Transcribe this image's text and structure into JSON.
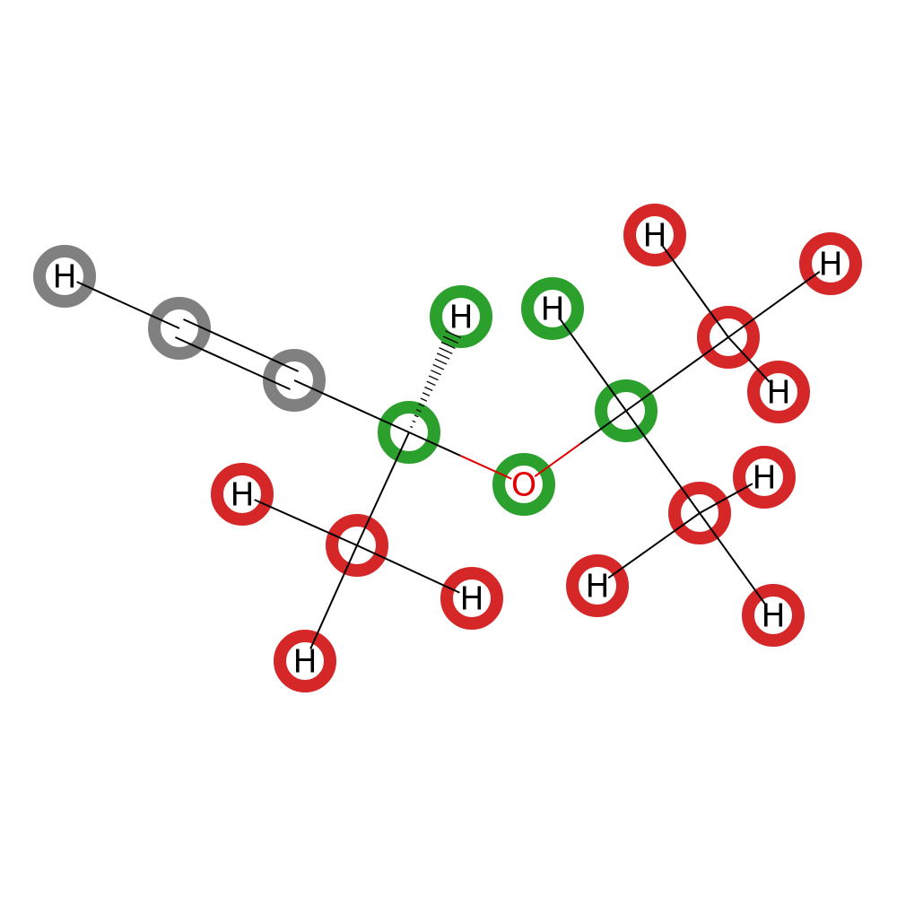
{
  "title": "",
  "colors": {
    "green": "#2ca02c",
    "red": "#d62728",
    "gray": "#808080",
    "bond": "#000000",
    "oxygen_bond": "#e00000",
    "oxygen_text": "#e00000",
    "label_text": "#000000"
  },
  "atoms": {
    "h_terminal": {
      "label": "H",
      "highlight": "gray"
    },
    "c_alkyne_1": {
      "label": "",
      "highlight": "gray"
    },
    "c_alkyne_2": {
      "label": "",
      "highlight": "gray"
    },
    "c_stereo": {
      "label": "",
      "highlight": "green"
    },
    "h_stereo": {
      "label": "H",
      "highlight": "green"
    },
    "o_ether": {
      "label": "O",
      "highlight": "green"
    },
    "c_isopropyl": {
      "label": "",
      "highlight": "green"
    },
    "h_isopropyl": {
      "label": "H",
      "highlight": "green"
    },
    "c_methyl_a": {
      "label": "",
      "highlight": "red"
    },
    "h_methyl_a_1": {
      "label": "H",
      "highlight": "red"
    },
    "h_methyl_a_2": {
      "label": "H",
      "highlight": "red"
    },
    "h_methyl_a_3": {
      "label": "H",
      "highlight": "red"
    },
    "c_methyl_b": {
      "label": "",
      "highlight": "red"
    },
    "h_methyl_b_1": {
      "label": "H",
      "highlight": "red"
    },
    "h_methyl_b_2": {
      "label": "H",
      "highlight": "red"
    },
    "h_methyl_b_3": {
      "label": "H",
      "highlight": "red"
    },
    "c_methyl_c": {
      "label": "",
      "highlight": "red"
    },
    "h_methyl_c_1": {
      "label": "H",
      "highlight": "red"
    },
    "h_methyl_c_2": {
      "label": "H",
      "highlight": "red"
    },
    "h_methyl_c_3": {
      "label": "H",
      "highlight": "red"
    }
  },
  "bonds": [
    {
      "from": "h_terminal",
      "to": "c_alkyne_1",
      "order": 1
    },
    {
      "from": "c_alkyne_1",
      "to": "c_alkyne_2",
      "order": 3
    },
    {
      "from": "c_alkyne_2",
      "to": "c_stereo",
      "order": 1
    },
    {
      "from": "c_stereo",
      "to": "h_stereo",
      "order": 1,
      "stereo": "hash"
    },
    {
      "from": "c_stereo",
      "to": "o_ether",
      "order": 1
    },
    {
      "from": "c_stereo",
      "to": "c_methyl_a",
      "order": 1
    },
    {
      "from": "c_methyl_a",
      "to": "h_methyl_a_1",
      "order": 1
    },
    {
      "from": "c_methyl_a",
      "to": "h_methyl_a_2",
      "order": 1
    },
    {
      "from": "c_methyl_a",
      "to": "h_methyl_a_3",
      "order": 1
    },
    {
      "from": "o_ether",
      "to": "c_isopropyl",
      "order": 1
    },
    {
      "from": "c_isopropyl",
      "to": "h_isopropyl",
      "order": 1
    },
    {
      "from": "c_isopropyl",
      "to": "c_methyl_b",
      "order": 1
    },
    {
      "from": "c_methyl_b",
      "to": "h_methyl_b_1",
      "order": 1
    },
    {
      "from": "c_methyl_b",
      "to": "h_methyl_b_2",
      "order": 1
    },
    {
      "from": "c_methyl_b",
      "to": "h_methyl_b_3",
      "order": 1
    },
    {
      "from": "c_isopropyl",
      "to": "c_methyl_c",
      "order": 1
    },
    {
      "from": "c_methyl_c",
      "to": "h_methyl_c_1",
      "order": 1
    },
    {
      "from": "c_methyl_c",
      "to": "h_methyl_c_2",
      "order": 1
    },
    {
      "from": "c_methyl_c",
      "to": "h_methyl_c_3",
      "order": 1
    }
  ]
}
